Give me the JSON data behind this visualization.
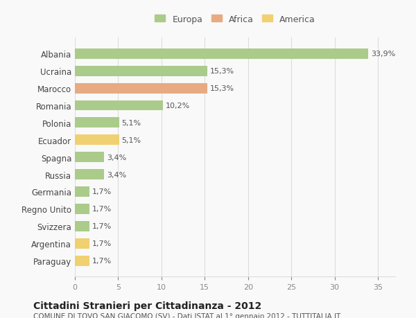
{
  "categories": [
    "Albania",
    "Ucraina",
    "Marocco",
    "Romania",
    "Polonia",
    "Ecuador",
    "Spagna",
    "Russia",
    "Germania",
    "Regno Unito",
    "Svizzera",
    "Argentina",
    "Paraguay"
  ],
  "values": [
    33.9,
    15.3,
    15.3,
    10.2,
    5.1,
    5.1,
    3.4,
    3.4,
    1.7,
    1.7,
    1.7,
    1.7,
    1.7
  ],
  "colors": [
    "#aacb8a",
    "#aacb8a",
    "#e8aa80",
    "#aacb8a",
    "#aacb8a",
    "#f0d070",
    "#aacb8a",
    "#aacb8a",
    "#aacb8a",
    "#aacb8a",
    "#aacb8a",
    "#f0d070",
    "#f0d070"
  ],
  "labels": [
    "33,9%",
    "15,3%",
    "15,3%",
    "10,2%",
    "5,1%",
    "5,1%",
    "3,4%",
    "3,4%",
    "1,7%",
    "1,7%",
    "1,7%",
    "1,7%",
    "1,7%"
  ],
  "legend": [
    {
      "label": "Europa",
      "color": "#aacb8a"
    },
    {
      "label": "Africa",
      "color": "#e8aa80"
    },
    {
      "label": "America",
      "color": "#f0d070"
    }
  ],
  "xlim": [
    0,
    37
  ],
  "xticks": [
    0,
    5,
    10,
    15,
    20,
    25,
    30,
    35
  ],
  "title": "Cittadini Stranieri per Cittadinanza - 2012",
  "subtitle": "COMUNE DI TOVO SAN GIACOMO (SV) - Dati ISTAT al 1° gennaio 2012 - TUTTITALIA.IT",
  "background_color": "#f9f9f9",
  "grid_color": "#dddddd",
  "bar_height": 0.6
}
